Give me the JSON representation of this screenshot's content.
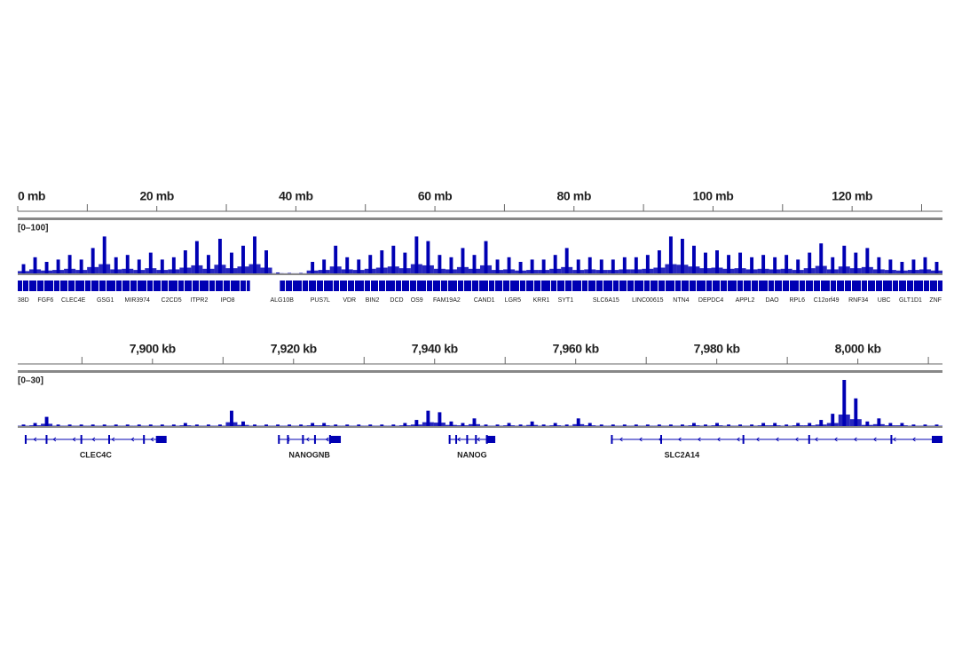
{
  "panels": [
    {
      "xlim": [
        0,
        133
      ],
      "ticks": [
        {
          "value": 0,
          "label": "0 mb"
        },
        {
          "value": 20,
          "label": "20 mb"
        },
        {
          "value": 40,
          "label": "40 mb"
        },
        {
          "value": 60,
          "label": "60 mb"
        },
        {
          "value": 80,
          "label": "80 mb"
        },
        {
          "value": 100,
          "label": "100 mb"
        },
        {
          "value": 120,
          "label": "120 mb"
        }
      ],
      "minor_ticks": [
        10,
        30,
        50,
        70,
        90,
        110,
        130
      ],
      "track_range": "[0–100]",
      "ylim": [
        0,
        100
      ],
      "coverage": [
        20,
        35,
        25,
        30,
        40,
        30,
        55,
        80,
        35,
        40,
        30,
        45,
        30,
        35,
        50,
        70,
        40,
        75,
        45,
        60,
        80,
        50,
        2,
        1,
        1,
        25,
        30,
        60,
        35,
        30,
        40,
        50,
        60,
        45,
        80,
        70,
        40,
        35,
        55,
        40,
        70,
        30,
        35,
        25,
        30,
        30,
        40,
        55,
        30,
        35,
        30,
        30,
        35,
        35,
        40,
        50,
        80,
        75,
        60,
        45,
        50,
        40,
        45,
        35,
        40,
        35,
        40,
        30,
        45,
        65,
        35,
        60,
        45,
        55,
        35,
        30,
        25,
        30,
        35,
        25
      ],
      "genes": [
        {
          "name": "38D",
          "pos": 0.8
        },
        {
          "name": "FGF6",
          "pos": 4.0
        },
        {
          "name": "CLEC4E",
          "pos": 8.0
        },
        {
          "name": "GSG1",
          "pos": 12.6
        },
        {
          "name": "MIR3974",
          "pos": 17.2
        },
        {
          "name": "C2CD5",
          "pos": 22.1
        },
        {
          "name": "ITPR2",
          "pos": 26.1
        },
        {
          "name": "IPO8",
          "pos": 30.2
        },
        {
          "name": "ALG10B",
          "pos": 38.0
        },
        {
          "name": "PUS7L",
          "pos": 43.5
        },
        {
          "name": "VDR",
          "pos": 47.7
        },
        {
          "name": "BIN2",
          "pos": 51.0
        },
        {
          "name": "DCD",
          "pos": 54.5
        },
        {
          "name": "OS9",
          "pos": 57.4
        },
        {
          "name": "FAM19A2",
          "pos": 61.7
        },
        {
          "name": "CAND1",
          "pos": 67.1
        },
        {
          "name": "LGR5",
          "pos": 71.2
        },
        {
          "name": "KRR1",
          "pos": 75.3
        },
        {
          "name": "SYT1",
          "pos": 78.8
        },
        {
          "name": "SLC6A15",
          "pos": 84.6
        },
        {
          "name": "LINC00615",
          "pos": 90.6
        },
        {
          "name": "NTN4",
          "pos": 95.4
        },
        {
          "name": "DEPDC4",
          "pos": 99.7
        },
        {
          "name": "APPL2",
          "pos": 104.6
        },
        {
          "name": "DAO",
          "pos": 108.5
        },
        {
          "name": "RPL6",
          "pos": 112.1
        },
        {
          "name": "C12orf49",
          "pos": 116.3
        },
        {
          "name": "RNF34",
          "pos": 120.9
        },
        {
          "name": "UBC",
          "pos": 124.6
        },
        {
          "name": "GLT1D1",
          "pos": 128.4
        },
        {
          "name": "ZNF",
          "pos": 132.0
        }
      ]
    },
    {
      "xlim": [
        7880.9,
        8012
      ],
      "ticks": [
        {
          "value": 7900,
          "label": "7,900 kb"
        },
        {
          "value": 7920,
          "label": "7,920 kb"
        },
        {
          "value": 7940,
          "label": "7,940 kb"
        },
        {
          "value": 7960,
          "label": "7,960 kb"
        },
        {
          "value": 7980,
          "label": "7,980 kb"
        },
        {
          "value": 8000,
          "label": "8,000 kb"
        }
      ],
      "minor_ticks": [
        7890,
        7910,
        7930,
        7950,
        7970,
        7990,
        8010
      ],
      "track_range": "[0–30]",
      "ylim": [
        0,
        30
      ],
      "coverage": [
        1,
        2,
        6,
        1,
        1,
        1,
        1,
        1,
        1,
        1,
        1,
        1,
        1,
        1,
        2,
        1,
        1,
        1,
        10,
        3,
        1,
        1,
        1,
        1,
        1,
        2,
        2,
        1,
        1,
        1,
        1,
        1,
        1,
        2,
        4,
        10,
        9,
        3,
        2,
        5,
        1,
        1,
        2,
        1,
        3,
        1,
        2,
        1,
        5,
        2,
        1,
        1,
        1,
        1,
        1,
        1,
        1,
        1,
        2,
        1,
        2,
        1,
        1,
        1,
        2,
        2,
        1,
        2,
        2,
        4,
        8,
        30,
        18,
        3,
        5,
        2,
        2,
        1,
        1,
        1
      ],
      "genes": [
        {
          "name": "CLEC4C",
          "start": 7881.9,
          "end": 7902.0
        },
        {
          "name": "NANOGNB",
          "start": 7917.8,
          "end": 7926.7
        },
        {
          "name": "NANOG",
          "start": 7942.0,
          "end": 7948.6
        },
        {
          "name": "SLC2A14",
          "start": 7965.0,
          "end": 8012
        }
      ]
    }
  ]
}
